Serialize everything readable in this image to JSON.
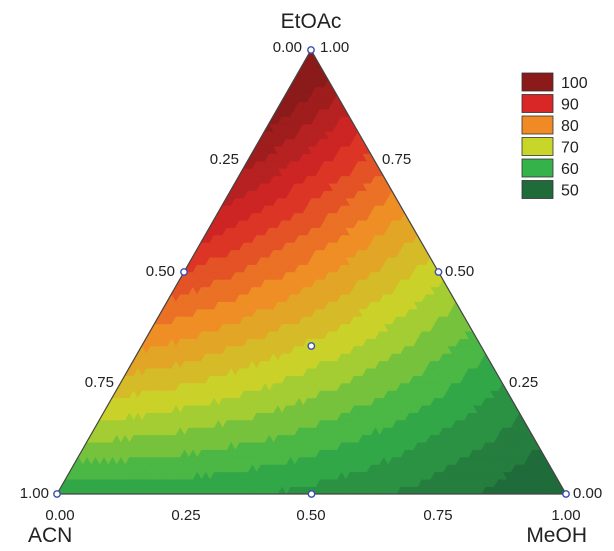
{
  "chart_data": {
    "type": "heatmap",
    "subtype": "ternary-contour",
    "title": "",
    "components": {
      "top": "EtOAc",
      "bottom_left": "ACN",
      "bottom_right": "MeOH"
    },
    "axes": {
      "left_edge_ticks": [
        "0.00",
        "0.25",
        "0.50",
        "0.75",
        "1.00"
      ],
      "right_edge_ticks": [
        "1.00",
        "0.75",
        "0.50",
        "0.25",
        "0.00"
      ],
      "bottom_edge_ticks": [
        "0.00",
        "0.25",
        "0.50",
        "0.75",
        "1.00"
      ]
    },
    "legend": {
      "placement": "top-right",
      "entries": [
        {
          "label": "100",
          "value": 100,
          "color": "#8b1a1a"
        },
        {
          "label": "90",
          "value": 90,
          "color": "#d92626"
        },
        {
          "label": "80",
          "value": 80,
          "color": "#f08a24"
        },
        {
          "label": "70",
          "value": 70,
          "color": "#c8d62a"
        },
        {
          "label": "60",
          "value": 60,
          "color": "#35b24a"
        },
        {
          "label": "50",
          "value": 50,
          "color": "#1f6b3a"
        }
      ]
    },
    "design_points": [
      {
        "etoac": 1.0,
        "acn": 0.0,
        "meoh": 0.0
      },
      {
        "etoac": 0.0,
        "acn": 1.0,
        "meoh": 0.0
      },
      {
        "etoac": 0.0,
        "acn": 0.0,
        "meoh": 1.0
      },
      {
        "etoac": 0.5,
        "acn": 0.5,
        "meoh": 0.0
      },
      {
        "etoac": 0.5,
        "acn": 0.0,
        "meoh": 0.5
      },
      {
        "etoac": 0.0,
        "acn": 0.5,
        "meoh": 0.5
      },
      {
        "etoac": 0.333,
        "acn": 0.333,
        "meoh": 0.333
      }
    ],
    "response_estimates": {
      "etoac_vertex": 104,
      "acn_vertex": 58,
      "meoh_vertex": 47,
      "edge_etoac_acn_mid": 87,
      "edge_etoac_meoh_mid": 70,
      "edge_acn_meoh_mid": 56,
      "centroid": 69
    },
    "zrange": [
      45,
      105
    ]
  }
}
